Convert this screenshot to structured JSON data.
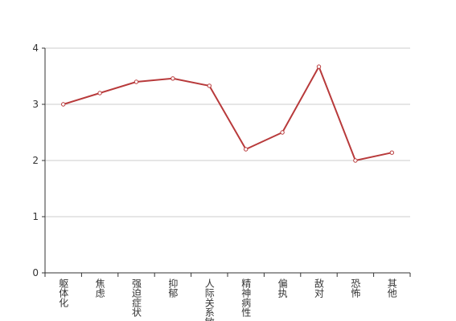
{
  "chart_data": {
    "type": "line",
    "categories": [
      "躯体化",
      "焦虑",
      "强迫症状",
      "抑郁",
      "人际关系敏感",
      "精神病性",
      "偏执",
      "敌对",
      "恐怖",
      "其他"
    ],
    "series": [
      {
        "color": "#b83a3b",
        "values": [
          3.0,
          3.2,
          3.4,
          3.46,
          3.33,
          2.2,
          2.5,
          3.67,
          2.0,
          2.14
        ]
      }
    ],
    "ylim": [
      0,
      4
    ],
    "yticks": [
      0,
      1,
      2,
      3,
      4
    ],
    "grid": true
  }
}
